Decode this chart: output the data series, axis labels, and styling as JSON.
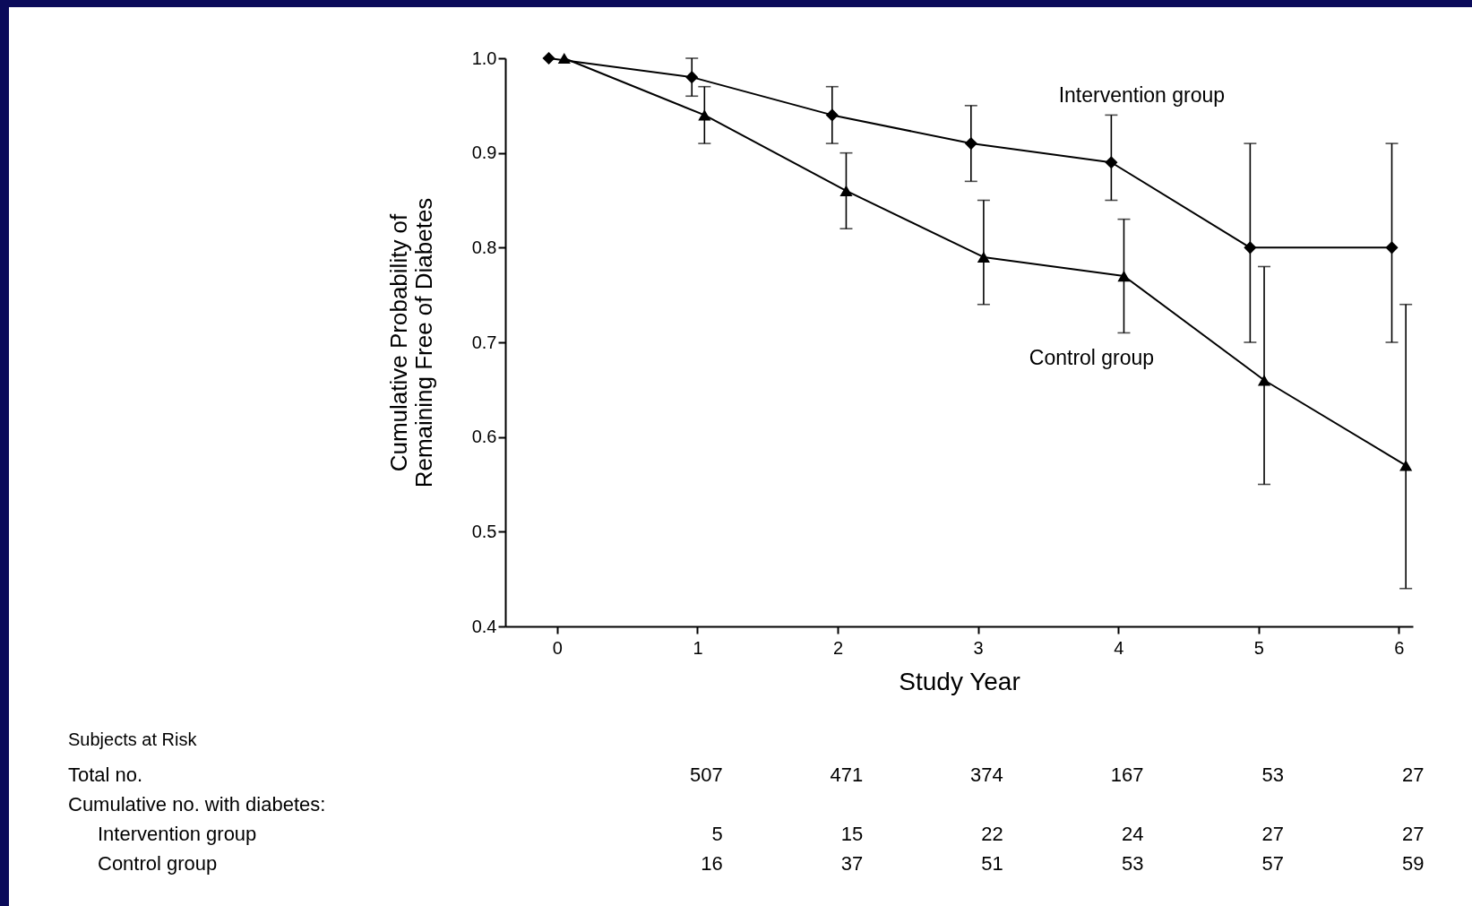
{
  "chart_data": {
    "type": "line",
    "xlabel": "Study Year",
    "ylabel": "Cumulative Probability of\nRemaining Free of Diabetes",
    "xlim": [
      -0.37,
      6.1
    ],
    "xticks": [
      0,
      1,
      2,
      3,
      4,
      5,
      6
    ],
    "ylim": [
      0.4,
      1.0
    ],
    "yticks": [
      {
        "value": 0.4,
        "label": "0.4"
      },
      {
        "value": 0.5,
        "label": "0.5"
      },
      {
        "value": 0.6,
        "label": "0.6"
      },
      {
        "value": 0.7,
        "label": "0.7"
      },
      {
        "value": 0.8,
        "label": "0.8"
      },
      {
        "value": 0.9,
        "label": "0.9"
      },
      {
        "value": 1.0,
        "label": "1.0"
      }
    ],
    "grid": false,
    "legend": false,
    "line_style": "solid",
    "series": [
      {
        "name": "Intervention group",
        "color": "#000000",
        "marker": "diamond",
        "x": [
          -0.06,
          0.96,
          1.96,
          2.95,
          3.95,
          4.94,
          5.95
        ],
        "values": [
          1.0,
          0.98,
          0.94,
          0.91,
          0.89,
          0.8,
          0.8
        ],
        "errors": [
          null,
          [
            0.96,
            1.0
          ],
          [
            0.91,
            0.97
          ],
          [
            0.87,
            0.95
          ],
          [
            0.85,
            0.94
          ],
          [
            0.7,
            0.91
          ],
          [
            0.7,
            0.91
          ]
        ]
      },
      {
        "name": "Control group",
        "color": "#000000",
        "marker": "triangle",
        "x": [
          0.05,
          1.05,
          2.06,
          3.04,
          4.04,
          5.04,
          6.05
        ],
        "values": [
          1.0,
          0.94,
          0.86,
          0.79,
          0.77,
          0.66,
          0.57
        ],
        "errors": [
          null,
          [
            0.91,
            0.97
          ],
          [
            0.82,
            0.9
          ],
          [
            0.74,
            0.85
          ],
          [
            0.71,
            0.83
          ],
          [
            0.55,
            0.78
          ],
          [
            0.44,
            0.74
          ]
        ]
      }
    ],
    "annotations": [
      "Subjects at Risk",
      "Total no.",
      "Cumulative no. with diabetes:",
      "Intervention group",
      "Control group",
      "507",
      "471",
      "374",
      "167",
      "53",
      "27",
      "5",
      "15",
      "22",
      "24",
      "27",
      "27",
      "16",
      "37",
      "51",
      "53",
      "57",
      "59"
    ]
  }
}
